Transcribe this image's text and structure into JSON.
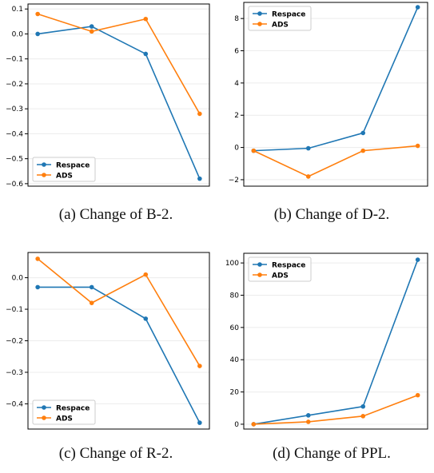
{
  "colors": {
    "respace": "#1f77b4",
    "ads": "#ff7f0e"
  },
  "chart_data": [
    {
      "type": "line",
      "caption": "(a)  Change of B-2.",
      "x": [
        1,
        2,
        3,
        4
      ],
      "series": [
        {
          "name": "Respace",
          "values": [
            0.0,
            0.03,
            -0.08,
            -0.58
          ]
        },
        {
          "name": "ADS",
          "values": [
            0.08,
            0.01,
            0.06,
            -0.32
          ]
        }
      ],
      "ylim": [
        -0.61,
        0.12
      ],
      "yticks": [
        0.1,
        0.0,
        -0.1,
        -0.2,
        -0.3,
        -0.4,
        -0.5,
        -0.6
      ],
      "ytick_labels": [
        "0.1",
        "0.0",
        "−0.1",
        "−0.2",
        "−0.3",
        "−0.4",
        "−0.5",
        "−0.6"
      ],
      "legend": "lower-left",
      "grid": true
    },
    {
      "type": "line",
      "caption": "(b)  Change of D-2.",
      "x": [
        1,
        2,
        3,
        4
      ],
      "series": [
        {
          "name": "Respace",
          "values": [
            -0.2,
            -0.05,
            0.9,
            8.7
          ]
        },
        {
          "name": "ADS",
          "values": [
            -0.2,
            -1.8,
            -0.2,
            0.1
          ]
        }
      ],
      "ylim": [
        -2.4,
        9.0
      ],
      "yticks": [
        8,
        6,
        4,
        2,
        0,
        -2
      ],
      "ytick_labels": [
        "8",
        "6",
        "4",
        "2",
        "0",
        "−2"
      ],
      "legend": "top-left",
      "grid": true
    },
    {
      "type": "line",
      "caption": "(c)  Change of R-2.",
      "x": [
        1,
        2,
        3,
        4
      ],
      "series": [
        {
          "name": "Respace",
          "values": [
            -0.03,
            -0.03,
            -0.13,
            -0.46
          ]
        },
        {
          "name": "ADS",
          "values": [
            0.06,
            -0.08,
            0.01,
            -0.28
          ]
        }
      ],
      "ylim": [
        -0.48,
        0.08
      ],
      "yticks": [
        0.0,
        -0.1,
        -0.2,
        -0.3,
        -0.4
      ],
      "ytick_labels": [
        "0.0",
        "−0.1",
        "−0.2",
        "−0.3",
        "−0.4"
      ],
      "legend": "lower-left",
      "grid": true
    },
    {
      "type": "line",
      "caption": "(d)  Change of PPL.",
      "x": [
        1,
        2,
        3,
        4
      ],
      "series": [
        {
          "name": "Respace",
          "values": [
            0.0,
            5.5,
            11.0,
            102.0
          ]
        },
        {
          "name": "ADS",
          "values": [
            0.0,
            1.5,
            5.0,
            18.0
          ]
        }
      ],
      "ylim": [
        -3,
        106
      ],
      "yticks": [
        100,
        80,
        60,
        40,
        20,
        0
      ],
      "ytick_labels": [
        "100",
        "80",
        "60",
        "40",
        "20",
        "0"
      ],
      "legend": "top-left",
      "grid": true
    }
  ]
}
